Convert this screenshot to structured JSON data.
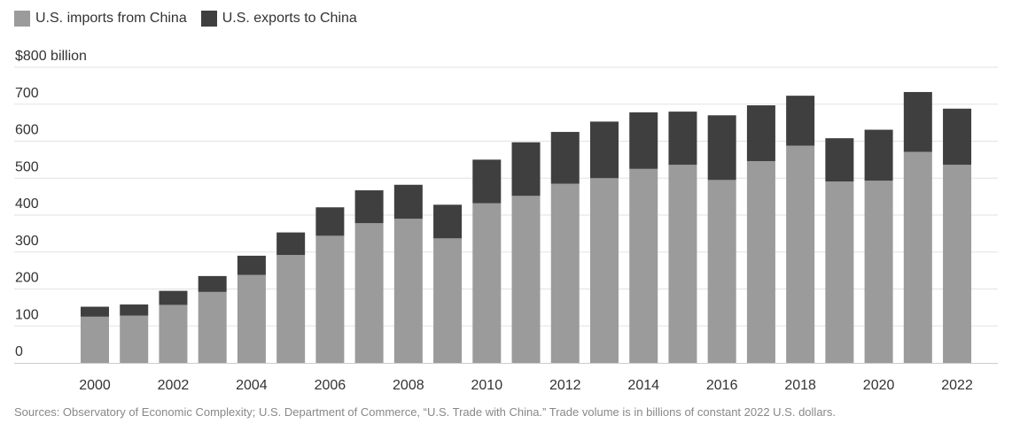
{
  "legend": {
    "imports_label": "U.S. imports from China",
    "exports_label": "U.S. exports to China"
  },
  "colors": {
    "imports": "#9b9b9b",
    "exports": "#3f3f3f",
    "grid": "#e2e2e2",
    "baseline": "#cccccc"
  },
  "chart_data": {
    "type": "bar",
    "stacked": true,
    "ylim": [
      0,
      800
    ],
    "y_ticks": [
      0,
      100,
      200,
      300,
      400,
      500,
      600,
      700,
      800
    ],
    "y_tick_labels": [
      "0",
      "100",
      "200",
      "300",
      "400",
      "500",
      "600",
      "700",
      "$800 billion"
    ],
    "categories": [
      "2000",
      "2001",
      "2002",
      "2003",
      "2004",
      "2005",
      "2006",
      "2007",
      "2008",
      "2009",
      "2010",
      "2011",
      "2012",
      "2013",
      "2014",
      "2015",
      "2016",
      "2017",
      "2018",
      "2019",
      "2020",
      "2021",
      "2022"
    ],
    "x_tick_labels": [
      "2000",
      "",
      "2002",
      "",
      "2004",
      "",
      "2006",
      "",
      "2008",
      "",
      "2010",
      "",
      "2012",
      "",
      "2014",
      "",
      "2016",
      "",
      "2018",
      "",
      "2020",
      "",
      "2022"
    ],
    "series": [
      {
        "name": "U.S. imports from China",
        "values": [
          125,
          128,
          157,
          192,
          238,
          292,
          344,
          378,
          390,
          337,
          432,
          452,
          485,
          500,
          525,
          536,
          495,
          546,
          588,
          491,
          493,
          571,
          536
        ]
      },
      {
        "name": "U.S. exports to China",
        "values": [
          27,
          30,
          38,
          43,
          52,
          61,
          77,
          89,
          92,
          91,
          118,
          145,
          140,
          153,
          153,
          144,
          175,
          151,
          135,
          117,
          138,
          162,
          152
        ]
      }
    ],
    "grid": true
  },
  "source": "Sources: Observatory of Economic Complexity; U.S. Department of Commerce, “U.S. Trade with China.” Trade volume is in billions of constant 2022 U.S. dollars."
}
